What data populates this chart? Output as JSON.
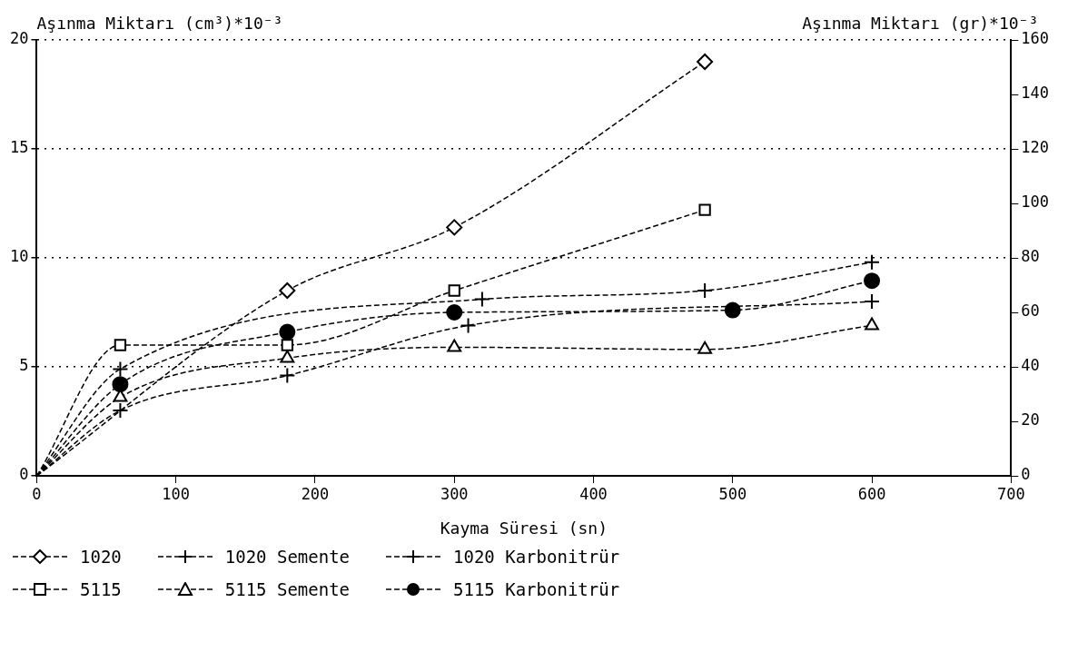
{
  "chart_data": {
    "type": "line",
    "xlabel": "Kayma Süresi (sn)",
    "ylabel": "Aşınma Miktarı (cm³)*10⁻³",
    "y2label": "Aşınma Miktarı (gr)*10⁻³",
    "xlim": [
      0,
      700
    ],
    "xticks": [
      0,
      100,
      200,
      300,
      400,
      500,
      600,
      700
    ],
    "ylim": [
      0,
      20
    ],
    "yticks": [
      0,
      5,
      10,
      15,
      20
    ],
    "y2lim": [
      0,
      160
    ],
    "y2ticks": [
      0,
      20,
      40,
      60,
      80,
      100,
      120,
      140,
      160
    ],
    "grid": "y",
    "legend": "bottom",
    "line_style": "dashed",
    "series": [
      {
        "name": "1020",
        "color": "#000000",
        "marker": "diamond",
        "x": [
          0,
          180,
          300,
          480
        ],
        "values": [
          0,
          8.5,
          11.4,
          19.0
        ]
      },
      {
        "name": "1020 Semente",
        "color": "#000000",
        "marker": "cross",
        "x": [
          0,
          60,
          320,
          480,
          600
        ],
        "values": [
          0,
          4.9,
          8.1,
          8.5,
          9.8
        ]
      },
      {
        "name": "1020 Karbonitrür",
        "color": "#000000",
        "marker": "cross",
        "x": [
          0,
          60,
          180,
          310,
          600
        ],
        "values": [
          0,
          3.0,
          4.6,
          6.9,
          8.0
        ]
      },
      {
        "name": "5115",
        "color": "#000000",
        "marker": "square",
        "x": [
          0,
          60,
          180,
          300,
          480
        ],
        "values": [
          0,
          6.0,
          6.0,
          8.5,
          12.2
        ]
      },
      {
        "name": "5115 Semente",
        "color": "#000000",
        "marker": "triangle",
        "x": [
          0,
          60,
          180,
          300,
          480,
          600
        ],
        "values": [
          0,
          3.6,
          5.4,
          5.9,
          5.8,
          6.9
        ]
      },
      {
        "name": "5115 Karbonitrür",
        "color": "#000000",
        "marker": "circle",
        "x": [
          0,
          60,
          180,
          300,
          500,
          600
        ],
        "values": [
          0,
          4.2,
          6.6,
          7.5,
          7.6,
          8.95
        ]
      }
    ]
  }
}
